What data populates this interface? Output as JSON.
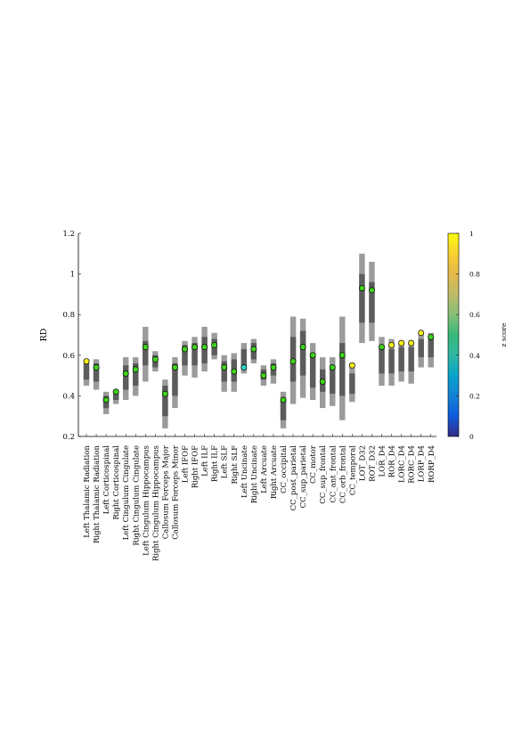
{
  "chart_data": {
    "type": "box",
    "ylabel": "RD",
    "xlabel": "",
    "ylim": [
      0.2,
      1.2
    ],
    "yticks": [
      0.2,
      0.4,
      0.6,
      0.8,
      1,
      1.2
    ],
    "grid": false,
    "colorbar": {
      "label": "z score",
      "range": [
        0,
        1
      ],
      "ticks": [
        0,
        0.2,
        0.4,
        0.6,
        0.8,
        1
      ],
      "colormap": "parula"
    },
    "categories": [
      "Left Thalamic Radiation",
      "Right Thalamic Radiation",
      "Left Corticospinal",
      "Right Corticospinal",
      "Left Cingulum Cingulate",
      "Right Cingulum Cingulate",
      "Left Cingulum Hippocampus",
      "Right Cingulum Hippocampus",
      "Callosum Forceps Major",
      "Callosum Forceps Minor",
      "Left IFOF",
      "Right IFOF",
      "Left ILF",
      "Right ILF",
      "Left SLF",
      "Right SLF",
      "Left Uncinate",
      "Right Uncinate",
      "Left Arcuate",
      "Right Arcuate",
      "CC_occipital",
      "CC_post_parietal",
      "CC_sup_parietal",
      "CC_motor",
      "CC_sup_frontal",
      "CC_ant_frontal",
      "CC_orb_frontal",
      "CC_temporal",
      "LOT_D32",
      "ROT_D32",
      "LOR_D4",
      "ROR_D4",
      "LORC_D4",
      "RORC_D4",
      "LORP_D4",
      "RORP_D4"
    ],
    "series": [
      {
        "outer_range": [
          [
            0.45,
            0.58
          ],
          [
            0.43,
            0.58
          ],
          [
            0.31,
            0.42
          ],
          [
            0.36,
            0.43
          ],
          [
            0.38,
            0.59
          ],
          [
            0.4,
            0.59
          ],
          [
            0.47,
            0.74
          ],
          [
            0.52,
            0.62
          ],
          [
            0.24,
            0.48
          ],
          [
            0.34,
            0.59
          ],
          [
            0.5,
            0.67
          ],
          [
            0.49,
            0.69
          ],
          [
            0.52,
            0.74
          ],
          [
            0.58,
            0.71
          ],
          [
            0.42,
            0.6
          ],
          [
            0.42,
            0.61
          ],
          [
            0.51,
            0.66
          ],
          [
            0.56,
            0.68
          ],
          [
            0.45,
            0.55
          ],
          [
            0.46,
            0.58
          ],
          [
            0.24,
            0.42
          ],
          [
            0.36,
            0.79
          ],
          [
            0.39,
            0.78
          ],
          [
            0.38,
            0.66
          ],
          [
            0.34,
            0.59
          ],
          [
            0.35,
            0.59
          ],
          [
            0.28,
            0.79
          ],
          [
            0.37,
            0.56
          ],
          [
            0.66,
            1.1
          ],
          [
            0.67,
            1.06
          ],
          [
            0.45,
            0.69
          ],
          [
            0.45,
            0.68
          ],
          [
            0.47,
            0.67
          ],
          [
            0.46,
            0.67
          ],
          [
            0.54,
            0.71
          ],
          [
            0.54,
            0.71
          ]
        ],
        "inner_range": [
          [
            0.48,
            0.56
          ],
          [
            0.47,
            0.56
          ],
          [
            0.34,
            0.4
          ],
          [
            0.38,
            0.42
          ],
          [
            0.43,
            0.55
          ],
          [
            0.45,
            0.56
          ],
          [
            0.55,
            0.67
          ],
          [
            0.54,
            0.6
          ],
          [
            0.3,
            0.45
          ],
          [
            0.4,
            0.56
          ],
          [
            0.55,
            0.65
          ],
          [
            0.55,
            0.66
          ],
          [
            0.56,
            0.69
          ],
          [
            0.6,
            0.68
          ],
          [
            0.47,
            0.57
          ],
          [
            0.47,
            0.58
          ],
          [
            0.53,
            0.63
          ],
          [
            0.58,
            0.66
          ],
          [
            0.48,
            0.53
          ],
          [
            0.5,
            0.56
          ],
          [
            0.28,
            0.38
          ],
          [
            0.47,
            0.69
          ],
          [
            0.5,
            0.72
          ],
          [
            0.44,
            0.61
          ],
          [
            0.42,
            0.53
          ],
          [
            0.41,
            0.55
          ],
          [
            0.4,
            0.66
          ],
          [
            0.41,
            0.51
          ],
          [
            0.76,
            1
          ],
          [
            0.76,
            0.96
          ],
          [
            0.51,
            0.64
          ],
          [
            0.51,
            0.63
          ],
          [
            0.52,
            0.64
          ],
          [
            0.52,
            0.64
          ],
          [
            0.59,
            0.68
          ],
          [
            0.59,
            0.69
          ]
        ],
        "median": [
          0.57,
          0.54,
          0.38,
          0.42,
          0.51,
          0.53,
          0.64,
          0.58,
          0.41,
          0.54,
          0.63,
          0.64,
          0.64,
          0.65,
          0.54,
          0.52,
          0.54,
          0.63,
          0.5,
          0.54,
          0.38,
          0.57,
          0.64,
          0.6,
          0.47,
          0.54,
          0.6,
          0.55,
          0.93,
          0.92,
          0.64,
          0.65,
          0.66,
          0.66,
          0.71,
          0.69
        ],
        "z_score": [
          0.88,
          0.7,
          0.66,
          0.7,
          0.68,
          0.65,
          0.66,
          0.64,
          0.69,
          0.7,
          0.66,
          0.67,
          0.66,
          0.66,
          0.7,
          0.64,
          0.46,
          0.68,
          0.64,
          0.68,
          0.74,
          0.66,
          0.64,
          0.66,
          0.66,
          0.66,
          0.66,
          0.9,
          0.66,
          0.66,
          0.6,
          0.88,
          0.93,
          0.93,
          0.96,
          0.8
        ]
      }
    ]
  }
}
